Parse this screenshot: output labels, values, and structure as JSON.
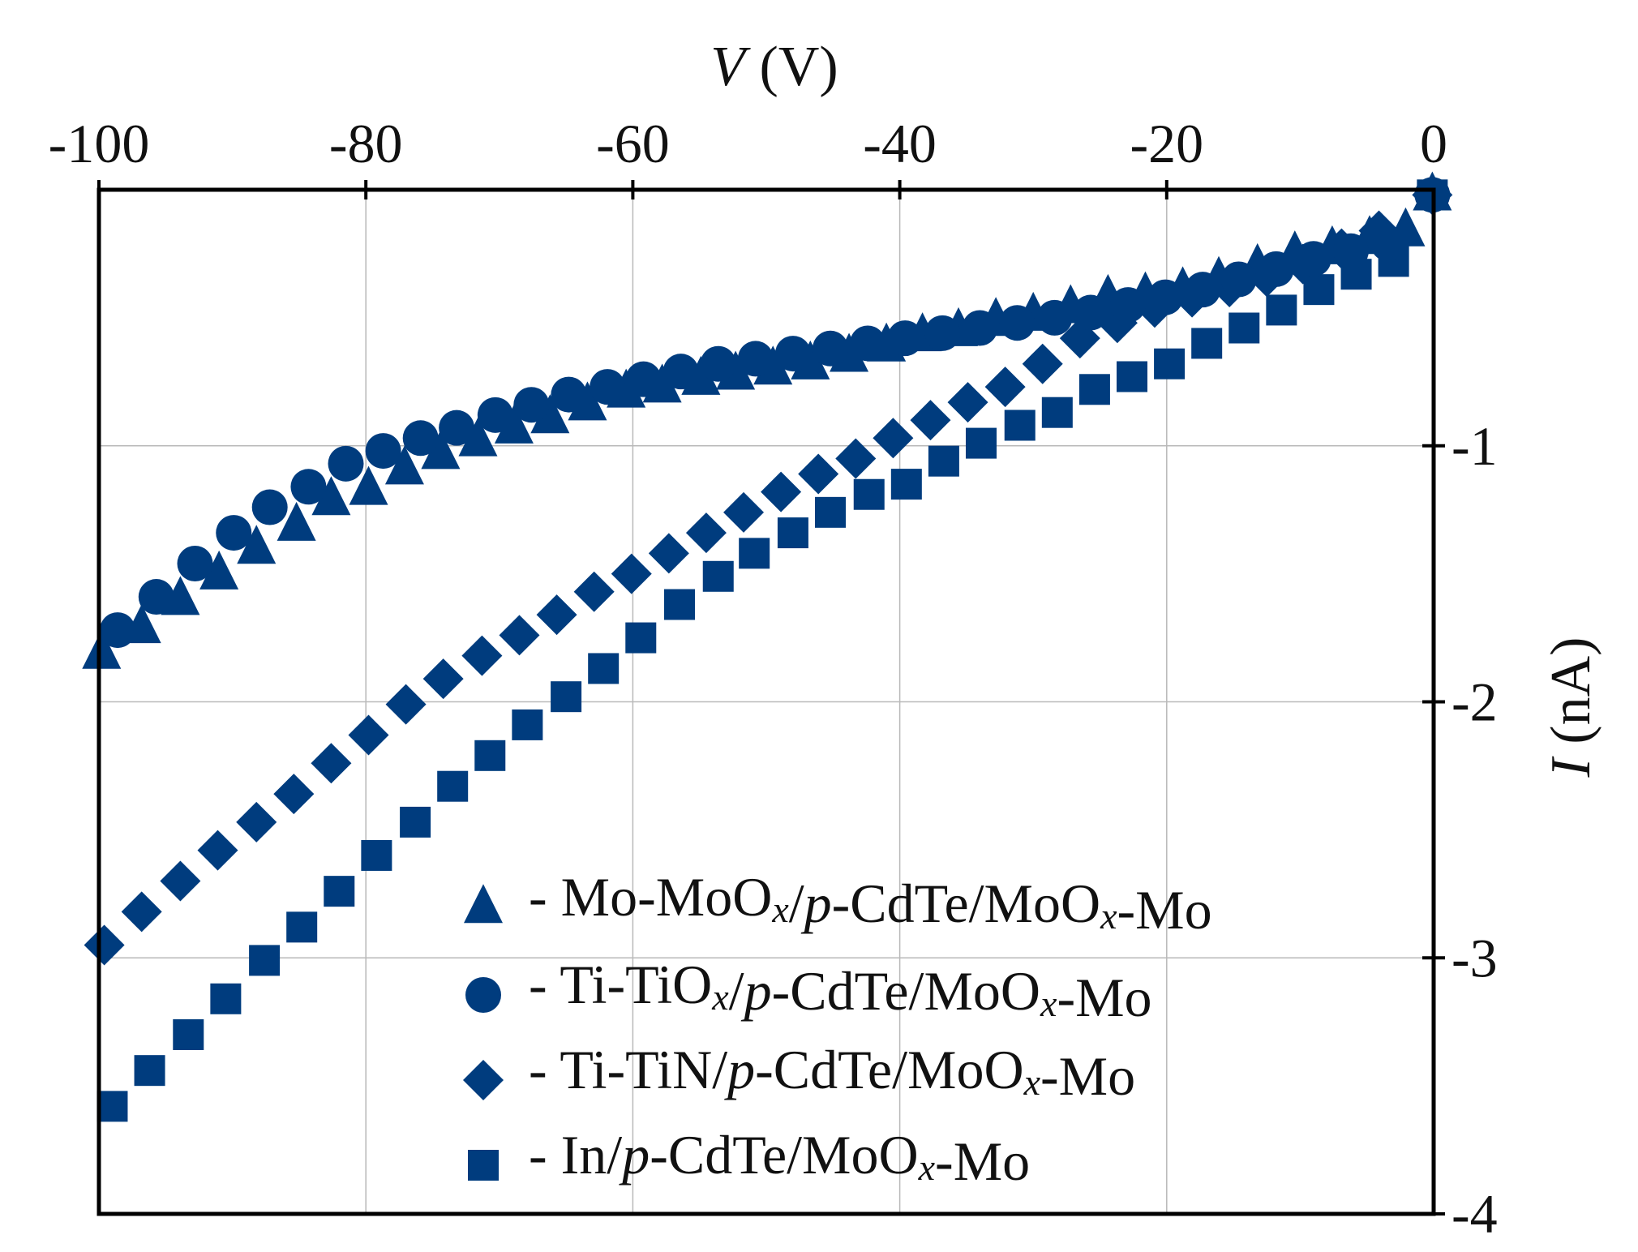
{
  "chart_data": {
    "type": "scatter",
    "title": "",
    "xlabel": {
      "italic": "V",
      "rest": " (V)"
    },
    "ylabel": {
      "italic": "I",
      "rest": " (nA)"
    },
    "xlim": [
      -100,
      0
    ],
    "ylim": [
      -4,
      0
    ],
    "x_ticks": [
      -100,
      -80,
      -60,
      -40,
      -20,
      0
    ],
    "y_ticks": [
      -1,
      -2,
      -3,
      -4
    ],
    "x_axis_position": "top",
    "y_axis_position": "right",
    "grid": true,
    "legend_position": "bottom-right",
    "marker_color": "#003C7E",
    "series": [
      {
        "name": "Mo-MoOx/p-CdTe/MoOx-Mo",
        "legend_parts": [
          {
            "t": "- Mo-MoO"
          },
          {
            "t": "x",
            "style": "sub-italic"
          },
          {
            "t": "/"
          },
          {
            "t": "p",
            "style": "italic"
          },
          {
            "t": "-CdTe/MoO"
          },
          {
            "t": "x",
            "style": "sub-italic"
          },
          {
            "t": "-Mo"
          }
        ],
        "marker": "triangle",
        "x": [
          -99.8,
          -96.8,
          -93.9,
          -91,
          -88.2,
          -85.2,
          -82.6,
          -79.8,
          -77.1,
          -74.4,
          -71.6,
          -68.9,
          -66.2,
          -63.4,
          -60.5,
          -57.8,
          -54.9,
          -52.3,
          -49.5,
          -46.7,
          -43.8,
          -41,
          -38.3,
          -35.6,
          -32.8,
          -30,
          -27.2,
          -24.4,
          -21.6,
          -18.8,
          -16.1,
          -13.2,
          -10.4,
          -7.6,
          -4.8,
          -2.1,
          -0.1
        ],
        "y": [
          -1.81,
          -1.71,
          -1.6,
          -1.5,
          -1.4,
          -1.31,
          -1.21,
          -1.17,
          -1.09,
          -1.03,
          -0.98,
          -0.93,
          -0.89,
          -0.84,
          -0.79,
          -0.77,
          -0.74,
          -0.72,
          -0.7,
          -0.68,
          -0.65,
          -0.61,
          -0.57,
          -0.55,
          -0.51,
          -0.49,
          -0.46,
          -0.42,
          -0.41,
          -0.39,
          -0.35,
          -0.3,
          -0.25,
          -0.23,
          -0.19,
          -0.16,
          -0.02
        ]
      },
      {
        "name": "Ti-TiOx/p-CdTe/MoOx-Mo",
        "legend_parts": [
          {
            "t": "- Ti-TiO"
          },
          {
            "t": "x",
            "style": "sub-italic"
          },
          {
            "t": "/"
          },
          {
            "t": "p",
            "style": "italic"
          },
          {
            "t": "-CdTe/MoO"
          },
          {
            "t": "x",
            "style": "sub-italic"
          },
          {
            "t": "-Mo"
          }
        ],
        "marker": "circle",
        "x": [
          -98.6,
          -95.7,
          -92.8,
          -89.9,
          -87.2,
          -84.3,
          -81.5,
          -78.7,
          -75.9,
          -73.2,
          -70.3,
          -67.6,
          -64.8,
          -61.9,
          -59.2,
          -56.4,
          -53.6,
          -50.8,
          -48,
          -45.2,
          -42.4,
          -39.6,
          -36.8,
          -34,
          -31.2,
          -28.4,
          -25.7,
          -22.9,
          -20.1,
          -17.3,
          -14.6,
          -11.8,
          -9,
          -6.2,
          -3.4,
          -0.1
        ],
        "y": [
          -1.72,
          -1.59,
          -1.46,
          -1.34,
          -1.24,
          -1.16,
          -1.07,
          -1.02,
          -0.97,
          -0.93,
          -0.88,
          -0.84,
          -0.8,
          -0.77,
          -0.74,
          -0.71,
          -0.68,
          -0.66,
          -0.64,
          -0.62,
          -0.6,
          -0.58,
          -0.56,
          -0.54,
          -0.52,
          -0.5,
          -0.48,
          -0.45,
          -0.42,
          -0.39,
          -0.35,
          -0.31,
          -0.27,
          -0.24,
          -0.21,
          -0.02
        ]
      },
      {
        "name": "Ti-TiN/p-CdTe/MoOx-Mo",
        "legend_parts": [
          {
            "t": "- Ti-TiN/"
          },
          {
            "t": "p",
            "style": "italic"
          },
          {
            "t": "-CdTe/MoO"
          },
          {
            "t": "x",
            "style": "sub-italic"
          },
          {
            "t": "-Mo"
          }
        ],
        "marker": "diamond",
        "x": [
          -99.6,
          -96.8,
          -93.9,
          -91.1,
          -88.2,
          -85.4,
          -82.6,
          -79.8,
          -77,
          -74.2,
          -71.3,
          -68.5,
          -65.7,
          -62.9,
          -60.1,
          -57.3,
          -54.5,
          -51.7,
          -48.9,
          -46.1,
          -43.3,
          -40.5,
          -37.7,
          -34.9,
          -32.1,
          -29.3,
          -26.5,
          -23.7,
          -20.9,
          -18.1,
          -15.3,
          -12.5,
          -9.8,
          -6.9,
          -4.1,
          -0.1
        ],
        "y": [
          -2.95,
          -2.82,
          -2.7,
          -2.58,
          -2.47,
          -2.36,
          -2.24,
          -2.13,
          -2.01,
          -1.91,
          -1.82,
          -1.74,
          -1.66,
          -1.57,
          -1.5,
          -1.42,
          -1.34,
          -1.26,
          -1.18,
          -1.11,
          -1.05,
          -0.97,
          -0.9,
          -0.83,
          -0.77,
          -0.68,
          -0.58,
          -0.52,
          -0.46,
          -0.42,
          -0.38,
          -0.34,
          -0.29,
          -0.23,
          -0.16,
          -0.02
        ]
      },
      {
        "name": "In/p-CdTe/MoOx-Mo",
        "legend_parts": [
          {
            "t": "- In/"
          },
          {
            "t": "p",
            "style": "italic"
          },
          {
            "t": "-CdTe/MoO"
          },
          {
            "t": "x",
            "style": "sub-italic"
          },
          {
            "t": "-Mo"
          }
        ],
        "marker": "square",
        "x": [
          -99,
          -96.2,
          -93.3,
          -90.5,
          -87.6,
          -84.8,
          -82,
          -79.2,
          -76.3,
          -73.5,
          -70.7,
          -67.9,
          -65,
          -62.2,
          -59.4,
          -56.5,
          -53.6,
          -50.9,
          -48,
          -45.2,
          -42.3,
          -39.5,
          -36.7,
          -33.9,
          -31,
          -28.2,
          -25.4,
          -22.6,
          -19.8,
          -17,
          -14.2,
          -11.4,
          -8.6,
          -5.8,
          -3,
          -0.1
        ],
        "y": [
          -3.58,
          -3.44,
          -3.3,
          -3.16,
          -3.01,
          -2.88,
          -2.74,
          -2.6,
          -2.47,
          -2.33,
          -2.21,
          -2.09,
          -1.98,
          -1.87,
          -1.75,
          -1.62,
          -1.51,
          -1.42,
          -1.34,
          -1.26,
          -1.19,
          -1.15,
          -1.06,
          -0.99,
          -0.92,
          -0.87,
          -0.78,
          -0.73,
          -0.68,
          -0.6,
          -0.54,
          -0.47,
          -0.39,
          -0.33,
          -0.28,
          -0.02
        ]
      }
    ]
  }
}
